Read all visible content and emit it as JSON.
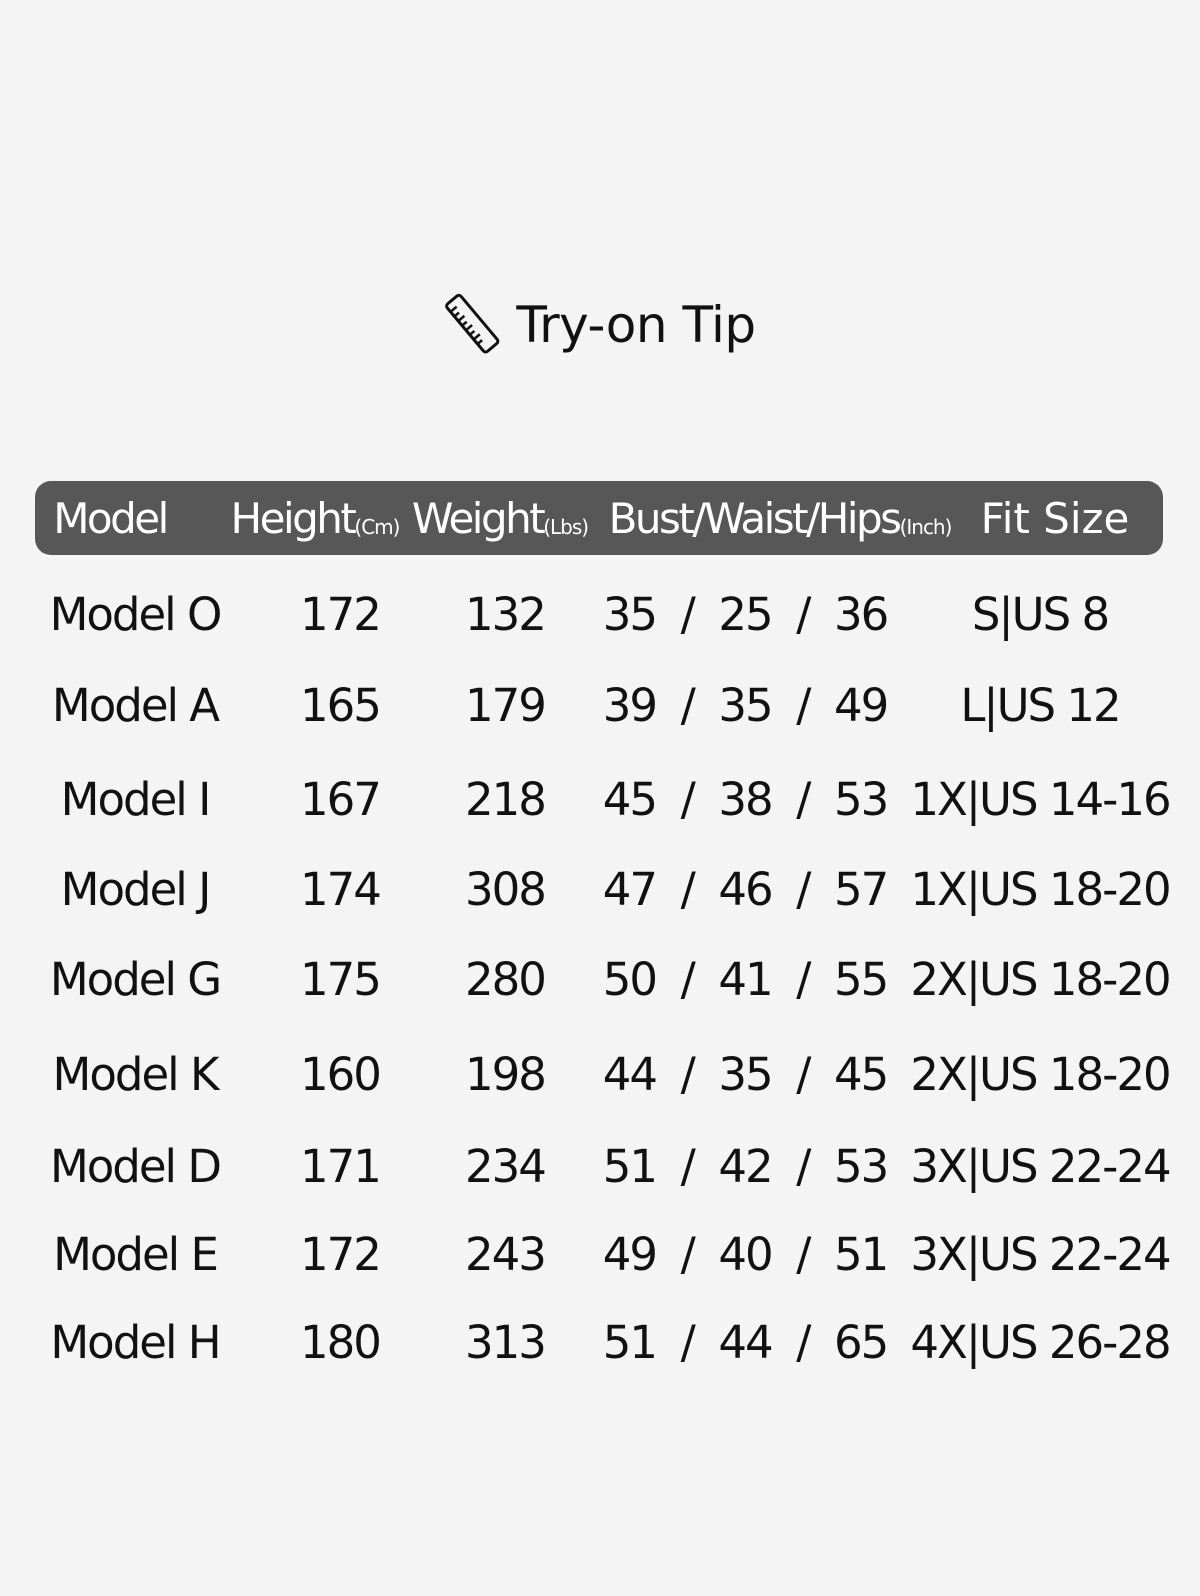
{
  "title": {
    "text": "Try-on Tip",
    "icon": "ruler-icon"
  },
  "header": {
    "model": "Model",
    "height": "Height",
    "height_unit": "(Cm)",
    "weight": "Weight",
    "weight_unit": "(Lbs)",
    "bwh": "Bust/Waist/Hips",
    "bwh_unit": "(Inch)",
    "fit": "Fit Size"
  },
  "colors": {
    "header_bg": "#575757",
    "page_bg": "#f4f4f4"
  },
  "rows": [
    {
      "model": "Model O",
      "height": "172",
      "weight": "132",
      "bwh": "35  /  25  /  36",
      "fit": "S|US 8"
    },
    {
      "model": "Model A",
      "height": "165",
      "weight": "179",
      "bwh": "39  /  35  /  49",
      "fit": "L|US 12"
    },
    {
      "model": "Model I",
      "height": "167",
      "weight": "218",
      "bwh": "45  /  38  /  53",
      "fit": "1X|US 14-16"
    },
    {
      "model": "Model J",
      "height": "174",
      "weight": "308",
      "bwh": "47  /  46  /  57",
      "fit": "1X|US 18-20"
    },
    {
      "model": "Model G",
      "height": "175",
      "weight": "280",
      "bwh": "50  /  41  /  55",
      "fit": "2X|US 18-20"
    },
    {
      "model": "Model K",
      "height": "160",
      "weight": "198",
      "bwh": "44  /  35  /  45",
      "fit": "2X|US 18-20"
    },
    {
      "model": "Model D",
      "height": "171",
      "weight": "234",
      "bwh": "51  /  42  /  53",
      "fit": "3X|US 22-24"
    },
    {
      "model": "Model E",
      "height": "172",
      "weight": "243",
      "bwh": "49  /  40  /  51",
      "fit": "3X|US 22-24"
    },
    {
      "model": "Model H",
      "height": "180",
      "weight": "313",
      "bwh": "51  /  44  /  65",
      "fit": "4X|US 26-28"
    }
  ]
}
